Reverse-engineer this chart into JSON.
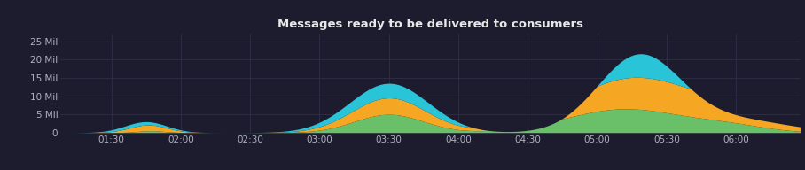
{
  "title": "Messages ready to be delivered to consumers",
  "bg_color": "#1c1c2e",
  "plot_bg": "#1c1c2e",
  "text_color": "#b0b0c0",
  "title_color": "#e8e8e8",
  "ylim": [
    0,
    27000000
  ],
  "yticks": [
    0,
    5000000,
    10000000,
    15000000,
    20000000,
    25000000
  ],
  "ytick_labels": [
    "0",
    "5 Mil",
    "10 Mil",
    "15 Mil",
    "20 Mil",
    "25 Mil"
  ],
  "xtick_labels": [
    "01:30",
    "02:00",
    "02:30",
    "03:00",
    "03:30",
    "04:00",
    "04:30",
    "05:00",
    "05:30",
    "06:00"
  ],
  "xtick_pos": [
    90,
    120,
    150,
    180,
    210,
    240,
    270,
    300,
    330,
    360
  ],
  "t_min": 68,
  "t_max": 388,
  "colors": {
    "cyan": "#29c4d8",
    "yellow": "#f5a623",
    "green": "#6abf69"
  }
}
